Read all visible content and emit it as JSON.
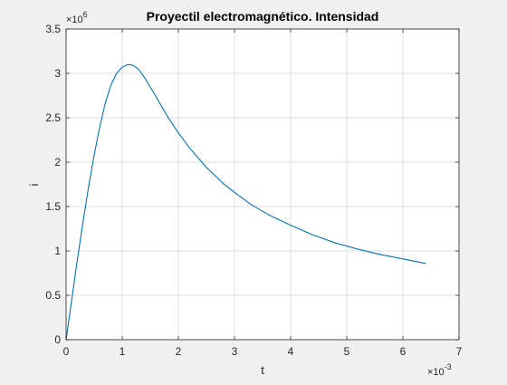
{
  "chart_data": {
    "type": "line",
    "title": "Proyectil electromagnético. Intensidad",
    "xlabel": "t",
    "ylabel": "i",
    "x_multiplier": "×10^{-3}",
    "x_multiplier_base": "×10",
    "x_multiplier_exp": "-3",
    "y_multiplier": "×10^{6}",
    "y_multiplier_base": "×10",
    "y_multiplier_exp": "6",
    "xlim": [
      0,
      7
    ],
    "ylim": [
      0,
      3.5
    ],
    "xticks": [
      "0",
      "1",
      "2",
      "3",
      "4",
      "5",
      "6",
      "7"
    ],
    "yticks": [
      "0",
      "0.5",
      "1",
      "1.5",
      "2",
      "2.5",
      "3",
      "3.5"
    ],
    "grid": true,
    "line_color": "#0072bd",
    "series": [
      {
        "x": [
          0,
          0.1,
          0.2,
          0.3,
          0.4,
          0.5,
          0.6,
          0.7,
          0.8,
          0.9,
          1.0,
          1.1,
          1.2,
          1.3,
          1.4,
          1.6,
          1.8,
          2.0,
          2.2,
          2.5,
          2.8,
          3.0,
          3.3,
          3.6,
          4.0,
          4.4,
          4.8,
          5.2,
          5.6,
          6.0,
          6.4
        ],
        "y": [
          0,
          0.45,
          0.9,
          1.32,
          1.72,
          2.08,
          2.4,
          2.67,
          2.87,
          3.0,
          3.07,
          3.1,
          3.09,
          3.04,
          2.95,
          2.74,
          2.52,
          2.33,
          2.16,
          1.94,
          1.76,
          1.66,
          1.52,
          1.41,
          1.29,
          1.18,
          1.09,
          1.02,
          0.96,
          0.91,
          0.86
        ]
      }
    ]
  }
}
